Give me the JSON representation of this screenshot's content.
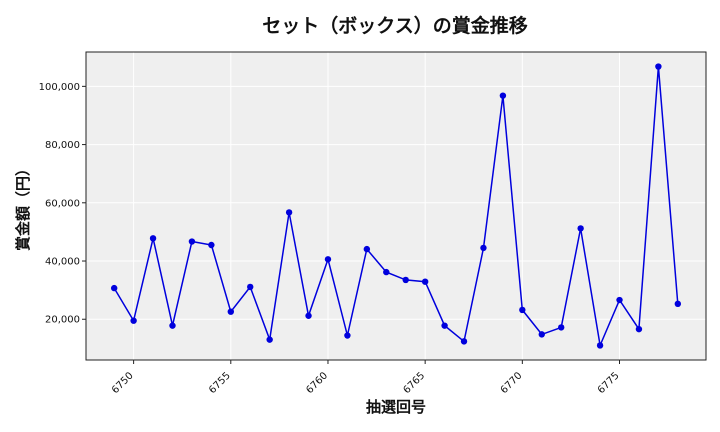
{
  "chart_data": {
    "type": "line",
    "title": "セット（ボックス）の賞金推移",
    "xlabel": "抽選回号",
    "ylabel": "賞金額（円）",
    "x": [
      6749,
      6750,
      6751,
      6752,
      6753,
      6754,
      6755,
      6756,
      6757,
      6758,
      6759,
      6760,
      6761,
      6762,
      6763,
      6764,
      6765,
      6766,
      6767,
      6768,
      6769,
      6770,
      6771,
      6772,
      6773,
      6774,
      6775,
      6776,
      6777,
      6778
    ],
    "series": [
      {
        "values": [
          30700,
          19500,
          47800,
          17800,
          46700,
          45500,
          22600,
          31100,
          13000,
          56700,
          21200,
          40600,
          14400,
          44100,
          36200,
          33500,
          32900,
          17800,
          12400,
          44500,
          96800,
          23200,
          14800,
          17200,
          51200,
          11000,
          26600,
          16600,
          106800,
          25300
        ],
        "color": "#0000dd"
      }
    ],
    "xticks": [
      6750,
      6755,
      6760,
      6765,
      6770,
      6775
    ],
    "xtick_labels": [
      "6750",
      "6755",
      "6760",
      "6765",
      "6770",
      "6775"
    ],
    "yticks": [
      20000,
      40000,
      60000,
      80000,
      100000
    ],
    "ytick_labels": [
      "20,000",
      "40,000",
      "60,000",
      "80,000",
      "100,000"
    ],
    "xlim": [
      6747.55,
      6779.45
    ],
    "ylim": [
      6000,
      111800
    ],
    "grid": true,
    "background_color": "#efefef"
  }
}
